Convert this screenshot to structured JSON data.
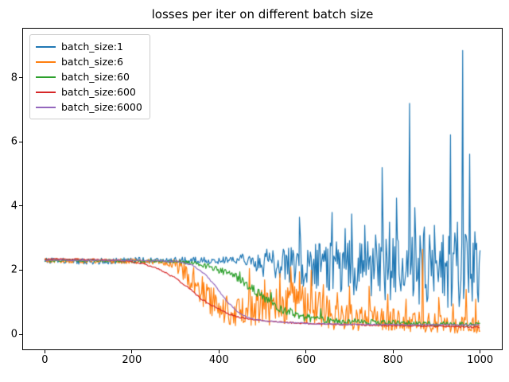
{
  "figure": {
    "background": "#ffffff"
  },
  "chart_data": {
    "type": "line",
    "title": "losses per iter on different batch size",
    "xlabel": "",
    "ylabel": "",
    "xlim": [
      -50,
      1050
    ],
    "ylim": [
      -0.47,
      9.53
    ],
    "xticks": [
      0,
      200,
      400,
      600,
      800,
      1000
    ],
    "yticks": [
      0,
      2,
      4,
      6,
      8
    ],
    "grid": false,
    "legend": {
      "position": "upper left",
      "edge_color": "#cccccc"
    },
    "series": [
      {
        "name": "batch_size:1",
        "color": "#1f77b4",
        "trend": [
          [
            0,
            2.3
          ],
          [
            100,
            2.27
          ],
          [
            200,
            2.3
          ],
          [
            300,
            2.32
          ],
          [
            400,
            2.3
          ],
          [
            460,
            2.28
          ],
          [
            500,
            2.25
          ],
          [
            550,
            2.2
          ],
          [
            600,
            2.15
          ],
          [
            650,
            2.1
          ],
          [
            700,
            2.1
          ],
          [
            750,
            2.05
          ],
          [
            800,
            2.0
          ],
          [
            850,
            2.0
          ],
          [
            900,
            1.95
          ],
          [
            950,
            1.95
          ],
          [
            1000,
            1.9
          ]
        ],
        "noise_band": [
          [
            0,
            0.09
          ],
          [
            300,
            0.1
          ],
          [
            420,
            0.12
          ],
          [
            460,
            0.25
          ],
          [
            500,
            0.45
          ],
          [
            550,
            0.55
          ],
          [
            600,
            0.7
          ],
          [
            650,
            0.8
          ],
          [
            700,
            0.85
          ],
          [
            750,
            0.95
          ],
          [
            800,
            1.0
          ],
          [
            850,
            1.1
          ],
          [
            900,
            1.15
          ],
          [
            950,
            1.25
          ],
          [
            1000,
            1.1
          ]
        ],
        "spikes": [
          [
            585,
            3.65
          ],
          [
            660,
            3.8
          ],
          [
            690,
            3.3
          ],
          [
            705,
            3.75
          ],
          [
            735,
            3.4
          ],
          [
            760,
            3.1
          ],
          [
            775,
            5.2
          ],
          [
            792,
            3.5
          ],
          [
            808,
            4.25
          ],
          [
            838,
            7.2
          ],
          [
            850,
            3.95
          ],
          [
            872,
            3.35
          ],
          [
            895,
            3.4
          ],
          [
            915,
            3.1
          ],
          [
            932,
            6.22
          ],
          [
            948,
            3.5
          ],
          [
            960,
            8.85
          ],
          [
            976,
            5.62
          ],
          [
            988,
            3.2
          ],
          [
            1000,
            2.62
          ]
        ],
        "clamp_min": 0.05
      },
      {
        "name": "batch_size:6",
        "color": "#ff7f0e",
        "trend": [
          [
            0,
            2.3
          ],
          [
            200,
            2.28
          ],
          [
            280,
            2.25
          ],
          [
            310,
            2.1
          ],
          [
            340,
            1.75
          ],
          [
            370,
            1.2
          ],
          [
            400,
            0.85
          ],
          [
            430,
            0.65
          ],
          [
            460,
            0.7
          ],
          [
            500,
            0.85
          ],
          [
            540,
            0.95
          ],
          [
            580,
            1.0
          ],
          [
            620,
            0.85
          ],
          [
            660,
            0.65
          ],
          [
            700,
            0.55
          ],
          [
            750,
            0.5
          ],
          [
            800,
            0.45
          ],
          [
            850,
            0.4
          ],
          [
            900,
            0.35
          ],
          [
            950,
            0.3
          ],
          [
            1000,
            0.28
          ]
        ],
        "noise_band": [
          [
            0,
            0.07
          ],
          [
            260,
            0.08
          ],
          [
            300,
            0.2
          ],
          [
            340,
            0.45
          ],
          [
            380,
            0.55
          ],
          [
            430,
            0.45
          ],
          [
            480,
            0.55
          ],
          [
            540,
            0.65
          ],
          [
            600,
            0.6
          ],
          [
            660,
            0.5
          ],
          [
            720,
            0.42
          ],
          [
            800,
            0.35
          ],
          [
            900,
            0.3
          ],
          [
            1000,
            0.25
          ]
        ],
        "spikes": [
          [
            365,
            1.62
          ],
          [
            470,
            2.05
          ],
          [
            505,
            1.7
          ],
          [
            540,
            1.9
          ],
          [
            565,
            2.1
          ],
          [
            585,
            1.95
          ],
          [
            612,
            2.0
          ],
          [
            640,
            1.55
          ],
          [
            672,
            1.3
          ],
          [
            700,
            1.5
          ],
          [
            745,
            1.5
          ],
          [
            788,
            1.25
          ],
          [
            830,
            1.1
          ],
          [
            868,
            2.65
          ],
          [
            905,
            1.15
          ],
          [
            938,
            0.95
          ],
          [
            968,
            1.4
          ],
          [
            990,
            1.1
          ]
        ],
        "clamp_min": 0.04
      },
      {
        "name": "batch_size:60",
        "color": "#2ca02c",
        "trend": [
          [
            0,
            2.3
          ],
          [
            250,
            2.29
          ],
          [
            300,
            2.27
          ],
          [
            340,
            2.22
          ],
          [
            380,
            2.1
          ],
          [
            420,
            1.9
          ],
          [
            450,
            1.7
          ],
          [
            480,
            1.4
          ],
          [
            510,
            1.1
          ],
          [
            540,
            0.85
          ],
          [
            570,
            0.65
          ],
          [
            600,
            0.52
          ],
          [
            640,
            0.45
          ],
          [
            700,
            0.4
          ],
          [
            780,
            0.37
          ],
          [
            860,
            0.34
          ],
          [
            940,
            0.32
          ],
          [
            1000,
            0.3
          ]
        ],
        "noise_band": [
          [
            0,
            0.04
          ],
          [
            300,
            0.05
          ],
          [
            400,
            0.1
          ],
          [
            450,
            0.14
          ],
          [
            520,
            0.16
          ],
          [
            600,
            0.13
          ],
          [
            680,
            0.1
          ],
          [
            800,
            0.08
          ],
          [
            1000,
            0.07
          ]
        ],
        "spikes": [
          [
            448,
            1.95
          ],
          [
            520,
            1.3
          ],
          [
            634,
            0.8
          ]
        ],
        "clamp_min": 0.08
      },
      {
        "name": "batch_size:600",
        "color": "#d62728",
        "trend": [
          [
            0,
            2.34
          ],
          [
            120,
            2.33
          ],
          [
            180,
            2.3
          ],
          [
            220,
            2.22
          ],
          [
            260,
            2.05
          ],
          [
            300,
            1.75
          ],
          [
            330,
            1.45
          ],
          [
            360,
            1.1
          ],
          [
            390,
            0.85
          ],
          [
            420,
            0.65
          ],
          [
            450,
            0.52
          ],
          [
            490,
            0.44
          ],
          [
            540,
            0.38
          ],
          [
            600,
            0.34
          ],
          [
            680,
            0.31
          ],
          [
            760,
            0.28
          ],
          [
            850,
            0.26
          ],
          [
            1000,
            0.22
          ]
        ],
        "noise_band": [
          [
            0,
            0.025
          ],
          [
            1000,
            0.025
          ]
        ],
        "spikes": [],
        "clamp_min": 0.05
      },
      {
        "name": "batch_size:6000",
        "color": "#9467bd",
        "trend": [
          [
            0,
            2.31
          ],
          [
            260,
            2.3
          ],
          [
            310,
            2.26
          ],
          [
            340,
            2.15
          ],
          [
            370,
            1.85
          ],
          [
            395,
            1.45
          ],
          [
            420,
            1.0
          ],
          [
            445,
            0.68
          ],
          [
            470,
            0.5
          ],
          [
            500,
            0.42
          ],
          [
            550,
            0.37
          ],
          [
            620,
            0.33
          ],
          [
            700,
            0.31
          ],
          [
            800,
            0.3
          ],
          [
            1000,
            0.29
          ]
        ],
        "noise_band": [
          [
            0,
            0.018
          ],
          [
            1000,
            0.018
          ]
        ],
        "spikes": [],
        "clamp_min": 0.05
      }
    ]
  }
}
